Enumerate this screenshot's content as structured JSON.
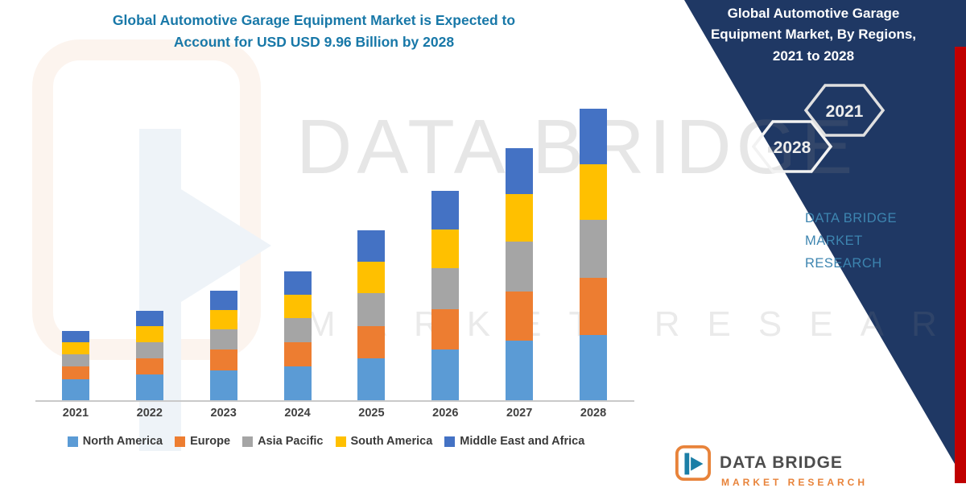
{
  "title": {
    "line1": "Global Automotive Garage Equipment Market is Expected to",
    "line2": "Account for USD USD 9.96 Billion by 2028"
  },
  "side_panel": {
    "title_line1": "Global Automotive Garage",
    "title_line2": "Equipment Market, By Regions,",
    "title_line3": "2021 to 2028",
    "hexagons": [
      {
        "label": "2028"
      },
      {
        "label": "2021"
      }
    ],
    "brand_line1": "DATA BRIDGE MARKET",
    "brand_line2": "RESEARCH",
    "colors": {
      "panel": "#1F3864",
      "stripe": "#C00000",
      "brand_text": "#3D85B0"
    }
  },
  "watermark": {
    "line1": "DATA BRIDGE",
    "line2": "MARKET RESEARCH"
  },
  "footer_logo": {
    "name": "DATA BRIDGE",
    "sub": "MARKET RESEARCH"
  },
  "chart_data": {
    "type": "bar",
    "subtype": "stacked",
    "title": "Global Automotive Garage Equipment Market is Expected to Account for USD USD 9.96 Billion by 2028",
    "unit": "USD Billion",
    "categories": [
      "2021",
      "2022",
      "2023",
      "2024",
      "2025",
      "2026",
      "2027",
      "2028"
    ],
    "series": [
      {
        "name": "North America",
        "color": "#5B9BD5",
        "values": [
          0.75,
          0.9,
          1.05,
          1.18,
          1.45,
          1.75,
          2.05,
          2.26
        ]
      },
      {
        "name": "Europe",
        "color": "#ED7D31",
        "values": [
          0.42,
          0.55,
          0.7,
          0.82,
          1.1,
          1.38,
          1.68,
          1.95
        ]
      },
      {
        "name": "Asia Pacific",
        "color": "#A5A5A5",
        "values": [
          0.42,
          0.56,
          0.7,
          0.83,
          1.12,
          1.4,
          1.72,
          1.97
        ]
      },
      {
        "name": "South America",
        "color": "#FFC000",
        "values": [
          0.41,
          0.54,
          0.66,
          0.8,
          1.08,
          1.32,
          1.6,
          1.9
        ]
      },
      {
        "name": "Middle East and Africa",
        "color": "#4472C4",
        "values": [
          0.4,
          0.53,
          0.66,
          0.8,
          1.08,
          1.33,
          1.58,
          1.88
        ]
      }
    ],
    "totals": [
      2.4,
      3.08,
      3.77,
      4.43,
      5.83,
      7.18,
      8.63,
      9.96
    ],
    "ylim": [
      0,
      10
    ],
    "legend_position": "bottom",
    "grid": false
  }
}
